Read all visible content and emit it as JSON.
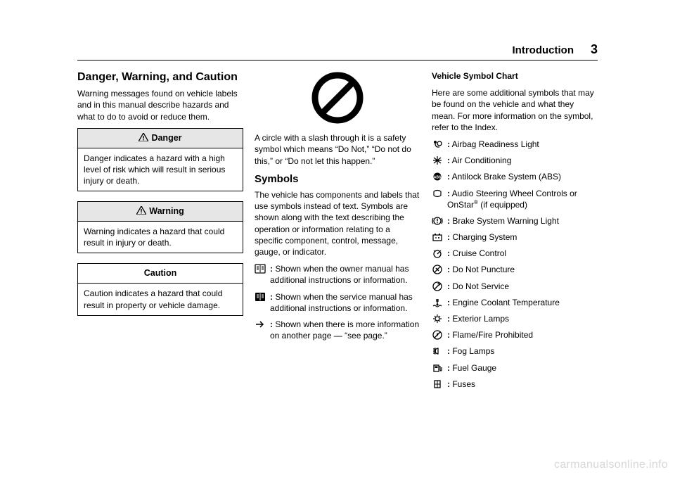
{
  "header": {
    "title": "Introduction",
    "page": "3"
  },
  "col1": {
    "heading": "Danger, Warning, and Caution",
    "intro": "Warning messages found on vehicle labels and in this manual describe hazards and what to do to avoid or reduce them.",
    "danger": {
      "title": "Danger",
      "body": "Danger indicates a hazard with a high level of risk which will result in serious injury or death."
    },
    "warning": {
      "title": "Warning",
      "body": "Warning indicates a hazard that could result in injury or death."
    },
    "caution": {
      "title": "Caution",
      "body": "Caution indicates a hazard that could result in property or vehicle damage."
    }
  },
  "col2": {
    "prohib_caption": "A circle with a slash through it is a safety symbol which means “Do Not,” “Do not do this,” or “Do not let this happen.”",
    "symbols_heading": "Symbols",
    "symbols_intro": "The vehicle has components and labels that use symbols instead of text. Symbols are shown along with the text describing the operation or information relating to a specific component, control, message, gauge, or indicator.",
    "owner": "Shown when the owner manual has additional instructions or information.",
    "service": "Shown when the service manual has additional instructions or information.",
    "seepage": "Shown when there is more information on another page — “see page.”"
  },
  "col3": {
    "chart_heading": "Vehicle Symbol Chart",
    "chart_intro": "Here are some additional symbols that may be found on the vehicle and what they mean. For more information on the symbol, refer to the Index.",
    "items": [
      {
        "label": "Airbag Readiness Light"
      },
      {
        "label": "Air Conditioning"
      },
      {
        "label": "Antilock Brake System (ABS)"
      },
      {
        "label_pre": "Audio Steering Wheel Controls or OnStar",
        "label_post": " (if equipped)"
      },
      {
        "label": "Brake System Warning Light"
      },
      {
        "label": "Charging System"
      },
      {
        "label": "Cruise Control"
      },
      {
        "label": "Do Not Puncture"
      },
      {
        "label": "Do Not Service"
      },
      {
        "label": "Engine Coolant Temperature"
      },
      {
        "label": "Exterior Lamps"
      },
      {
        "label": "Flame/Fire Prohibited"
      },
      {
        "label": "Fog Lamps"
      },
      {
        "label": "Fuel Gauge"
      },
      {
        "label": "Fuses"
      }
    ]
  },
  "watermark": "carmanualsonline.info",
  "colors": {
    "text": "#000000",
    "bg": "#ffffff",
    "shade": "#e6e6e6",
    "watermark": "#d7d7d7"
  }
}
